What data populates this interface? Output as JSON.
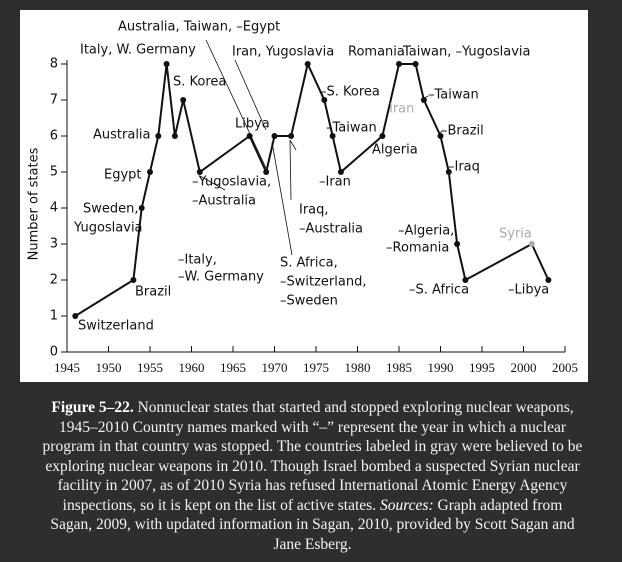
{
  "chart_data": {
    "type": "line",
    "ylabel": "Number of states",
    "x": [
      1946,
      1953,
      1954,
      1955,
      1956,
      1957,
      1958,
      1959,
      1961,
      1967,
      1969,
      1970,
      1972,
      1974,
      1976,
      1977,
      1978,
      1983,
      1985,
      1987,
      1988,
      1990,
      1991,
      1992,
      1993,
      2001,
      2003
    ],
    "values": [
      1,
      2,
      4,
      5,
      6,
      8,
      6,
      7,
      5,
      6,
      5,
      6,
      6,
      8,
      7,
      6,
      5,
      6,
      8,
      8,
      7,
      6,
      5,
      3,
      2,
      3,
      2
    ],
    "color": "#111111",
    "point_colors": [
      "#111111",
      "#111111",
      "#111111",
      "#111111",
      "#111111",
      "#111111",
      "#111111",
      "#111111",
      "#111111",
      "#111111",
      "#111111",
      "#111111",
      "#111111",
      "#111111",
      "#111111",
      "#111111",
      "#111111",
      "#111111",
      "#111111",
      "#111111",
      "#111111",
      "#111111",
      "#111111",
      "#111111",
      "#111111",
      "#aaaaaa",
      "#111111"
    ],
    "xlim": [
      1945,
      2005
    ],
    "ylim": [
      0,
      8
    ],
    "xticks": [
      1945,
      1950,
      1955,
      1960,
      1965,
      1970,
      1975,
      1980,
      1985,
      1990,
      1995,
      2000,
      2005
    ],
    "yticks": [
      0,
      1,
      2,
      3,
      4,
      5,
      6,
      7,
      8
    ],
    "annotations": [
      {
        "text": "Australia, Taiwan, –Egypt",
        "color": "#111111"
      },
      {
        "text": "Italy, W. Germany",
        "color": "#111111"
      },
      {
        "text": "Iran, Yugoslavia",
        "color": "#111111"
      },
      {
        "text": "Romania",
        "color": "#111111"
      },
      {
        "text": "Taiwan, –Yugoslavia",
        "color": "#111111"
      },
      {
        "text": "S. Korea",
        "color": "#111111"
      },
      {
        "text": "–S. Korea",
        "color": "#111111"
      },
      {
        "text": "Iran",
        "color": "#aaaaaa"
      },
      {
        "text": "–Taiwan",
        "color": "#111111"
      },
      {
        "text": "Australia",
        "color": "#111111"
      },
      {
        "text": "Libya",
        "color": "#111111"
      },
      {
        "text": "–Taiwan",
        "color": "#111111"
      },
      {
        "text": "–Brazil",
        "color": "#111111"
      },
      {
        "text": "Algeria",
        "color": "#111111"
      },
      {
        "text": "Egypt",
        "color": "#111111"
      },
      {
        "text": "–Yugoslavia,",
        "color": "#111111"
      },
      {
        "text": "–Australia",
        "color": "#111111"
      },
      {
        "text": "–Iran",
        "color": "#111111"
      },
      {
        "text": "–Iraq",
        "color": "#111111"
      },
      {
        "text": "Sweden,",
        "color": "#111111"
      },
      {
        "text": "Yugoslavia",
        "color": "#111111"
      },
      {
        "text": "Iraq,",
        "color": "#111111"
      },
      {
        "text": "–Australia",
        "color": "#111111"
      },
      {
        "text": "–Algeria,",
        "color": "#111111"
      },
      {
        "text": "–Romania",
        "color": "#111111"
      },
      {
        "text": "Syria",
        "color": "#aaaaaa"
      },
      {
        "text": "–Italy,",
        "color": "#111111"
      },
      {
        "text": "–W. Germany",
        "color": "#111111"
      },
      {
        "text": "S. Africa,",
        "color": "#111111"
      },
      {
        "text": "–Switzerland,",
        "color": "#111111"
      },
      {
        "text": "–Sweden",
        "color": "#111111"
      },
      {
        "text": "Brazil",
        "color": "#111111"
      },
      {
        "text": "–S. Africa",
        "color": "#111111"
      },
      {
        "text": "–Libya",
        "color": "#111111"
      },
      {
        "text": "Switzerland",
        "color": "#111111"
      }
    ]
  },
  "caption": {
    "label": "Figure 5–22.",
    "text": "Nonnuclear states that started and stopped exploring nuclear weapons, 1945–2010 Country names marked with “–” represent the year in which a nuclear program in that country was stopped. The countries labeled in gray were believed to be exploring nuclear weapons in 2010. Though Israel bombed a suspected Syrian nuclear facility in 2007, as of 2010 Syria has refused International Atomic Energy Agency inspections, so it is kept on the list of active states.",
    "sources_label": "Sources:",
    "sources_text": "Graph adapted from Sagan, 2009, with updated information in Sagan, 2010, provided by Scott Sagan and Jane Esberg."
  }
}
